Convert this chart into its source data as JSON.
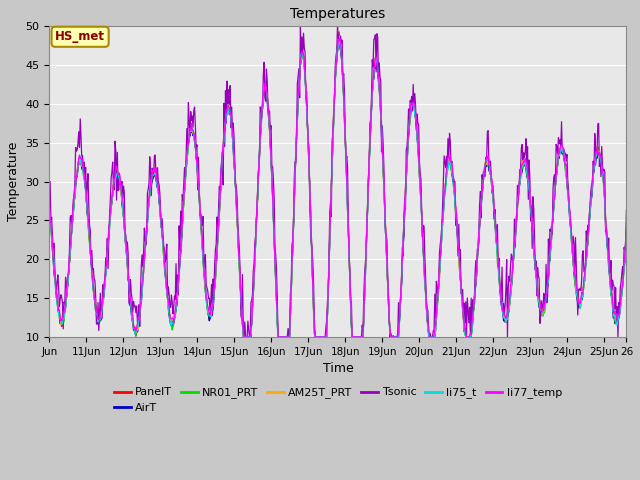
{
  "title": "Temperatures",
  "xlabel": "Time",
  "ylabel": "Temperature",
  "ylim": [
    10,
    50
  ],
  "bg_color": "#c8c8c8",
  "plot_bg_color": "#e8e8e8",
  "series_colors": {
    "PanelT": "#ff0000",
    "AirT": "#0000cc",
    "NR01_PRT": "#00dd00",
    "AM25T_PRT": "#ffaa00",
    "Tsonic": "#9900bb",
    "li75_t": "#00dddd",
    "li77_temp": "#ff00ff"
  },
  "legend_label": "HS_met",
  "xtick_labels": [
    "Jun",
    "11Jun",
    "12Jun",
    "13Jun",
    "14Jun",
    "15Jun",
    "16Jun",
    "17Jun",
    "18Jun",
    "19Jun",
    "20Jun",
    "21Jun",
    "22Jun",
    "23Jun",
    "24Jun",
    "25Jun",
    "26"
  ],
  "ytick_labels": [
    10,
    15,
    20,
    25,
    30,
    35,
    40,
    45,
    50
  ],
  "n_days": 15.6,
  "pts_per_day": 48,
  "peak_day": 7.5,
  "base_temp": 22,
  "base_amp": 10,
  "extra_amp": 15
}
